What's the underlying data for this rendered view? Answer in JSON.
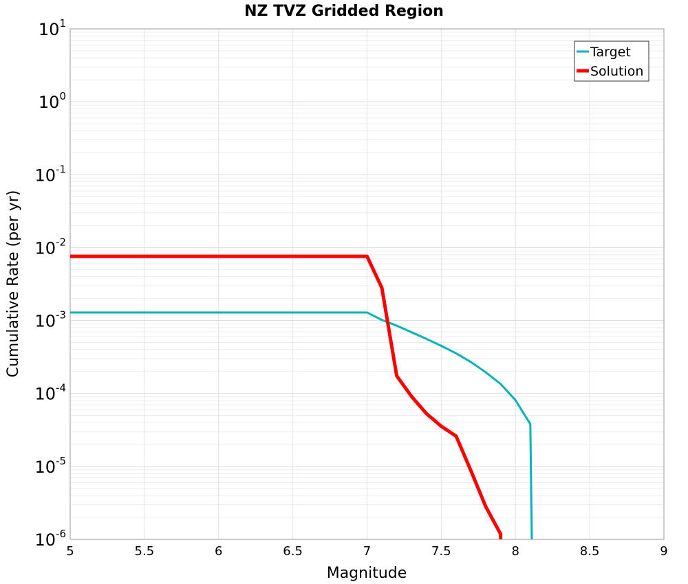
{
  "chart_data": {
    "type": "line",
    "title": "NZ TVZ Gridded Region",
    "xlabel": "Magnitude",
    "ylabel": "Cumulative Rate (per yr)",
    "xlim": [
      5,
      9
    ],
    "ylim": [
      1e-06,
      10
    ],
    "yscale": "log",
    "grid": true,
    "legend_position": "top-right",
    "x_ticks": [
      "5",
      "5.5",
      "6",
      "6.5",
      "7",
      "7.5",
      "8",
      "8.5",
      "9"
    ],
    "y_ticks": [
      {
        "base": "10",
        "exp": "1"
      },
      {
        "base": "10",
        "exp": "0"
      },
      {
        "base": "10",
        "exp": "-1"
      },
      {
        "base": "10",
        "exp": "-2"
      },
      {
        "base": "10",
        "exp": "-3"
      },
      {
        "base": "10",
        "exp": "-4"
      },
      {
        "base": "10",
        "exp": "-5"
      },
      {
        "base": "10",
        "exp": "-6"
      }
    ],
    "series": [
      {
        "name": "Target",
        "color": "#00b4b4",
        "x": [
          5.0,
          7.0,
          7.1,
          7.2,
          7.3,
          7.4,
          7.5,
          7.6,
          7.7,
          7.8,
          7.9,
          8.0,
          8.1,
          8.11
        ],
        "y": [
          0.00129,
          0.00129,
          0.00102,
          0.00085,
          0.00069,
          0.00056,
          0.00045,
          0.000355,
          0.00027,
          0.000195,
          0.000135,
          8.1e-05,
          3.8e-05,
          1e-08
        ]
      },
      {
        "name": "Solution",
        "color": "#ff0000",
        "x": [
          5.0,
          7.0,
          7.1,
          7.2,
          7.3,
          7.4,
          7.5,
          7.6,
          7.7,
          7.8,
          7.9,
          7.9
        ],
        "y": [
          0.0076,
          0.0076,
          0.0028,
          0.000174,
          9.1e-05,
          5.3e-05,
          3.55e-05,
          2.6e-05,
          8.7e-06,
          2.8e-06,
          1.18e-06,
          1e-08
        ]
      }
    ]
  }
}
